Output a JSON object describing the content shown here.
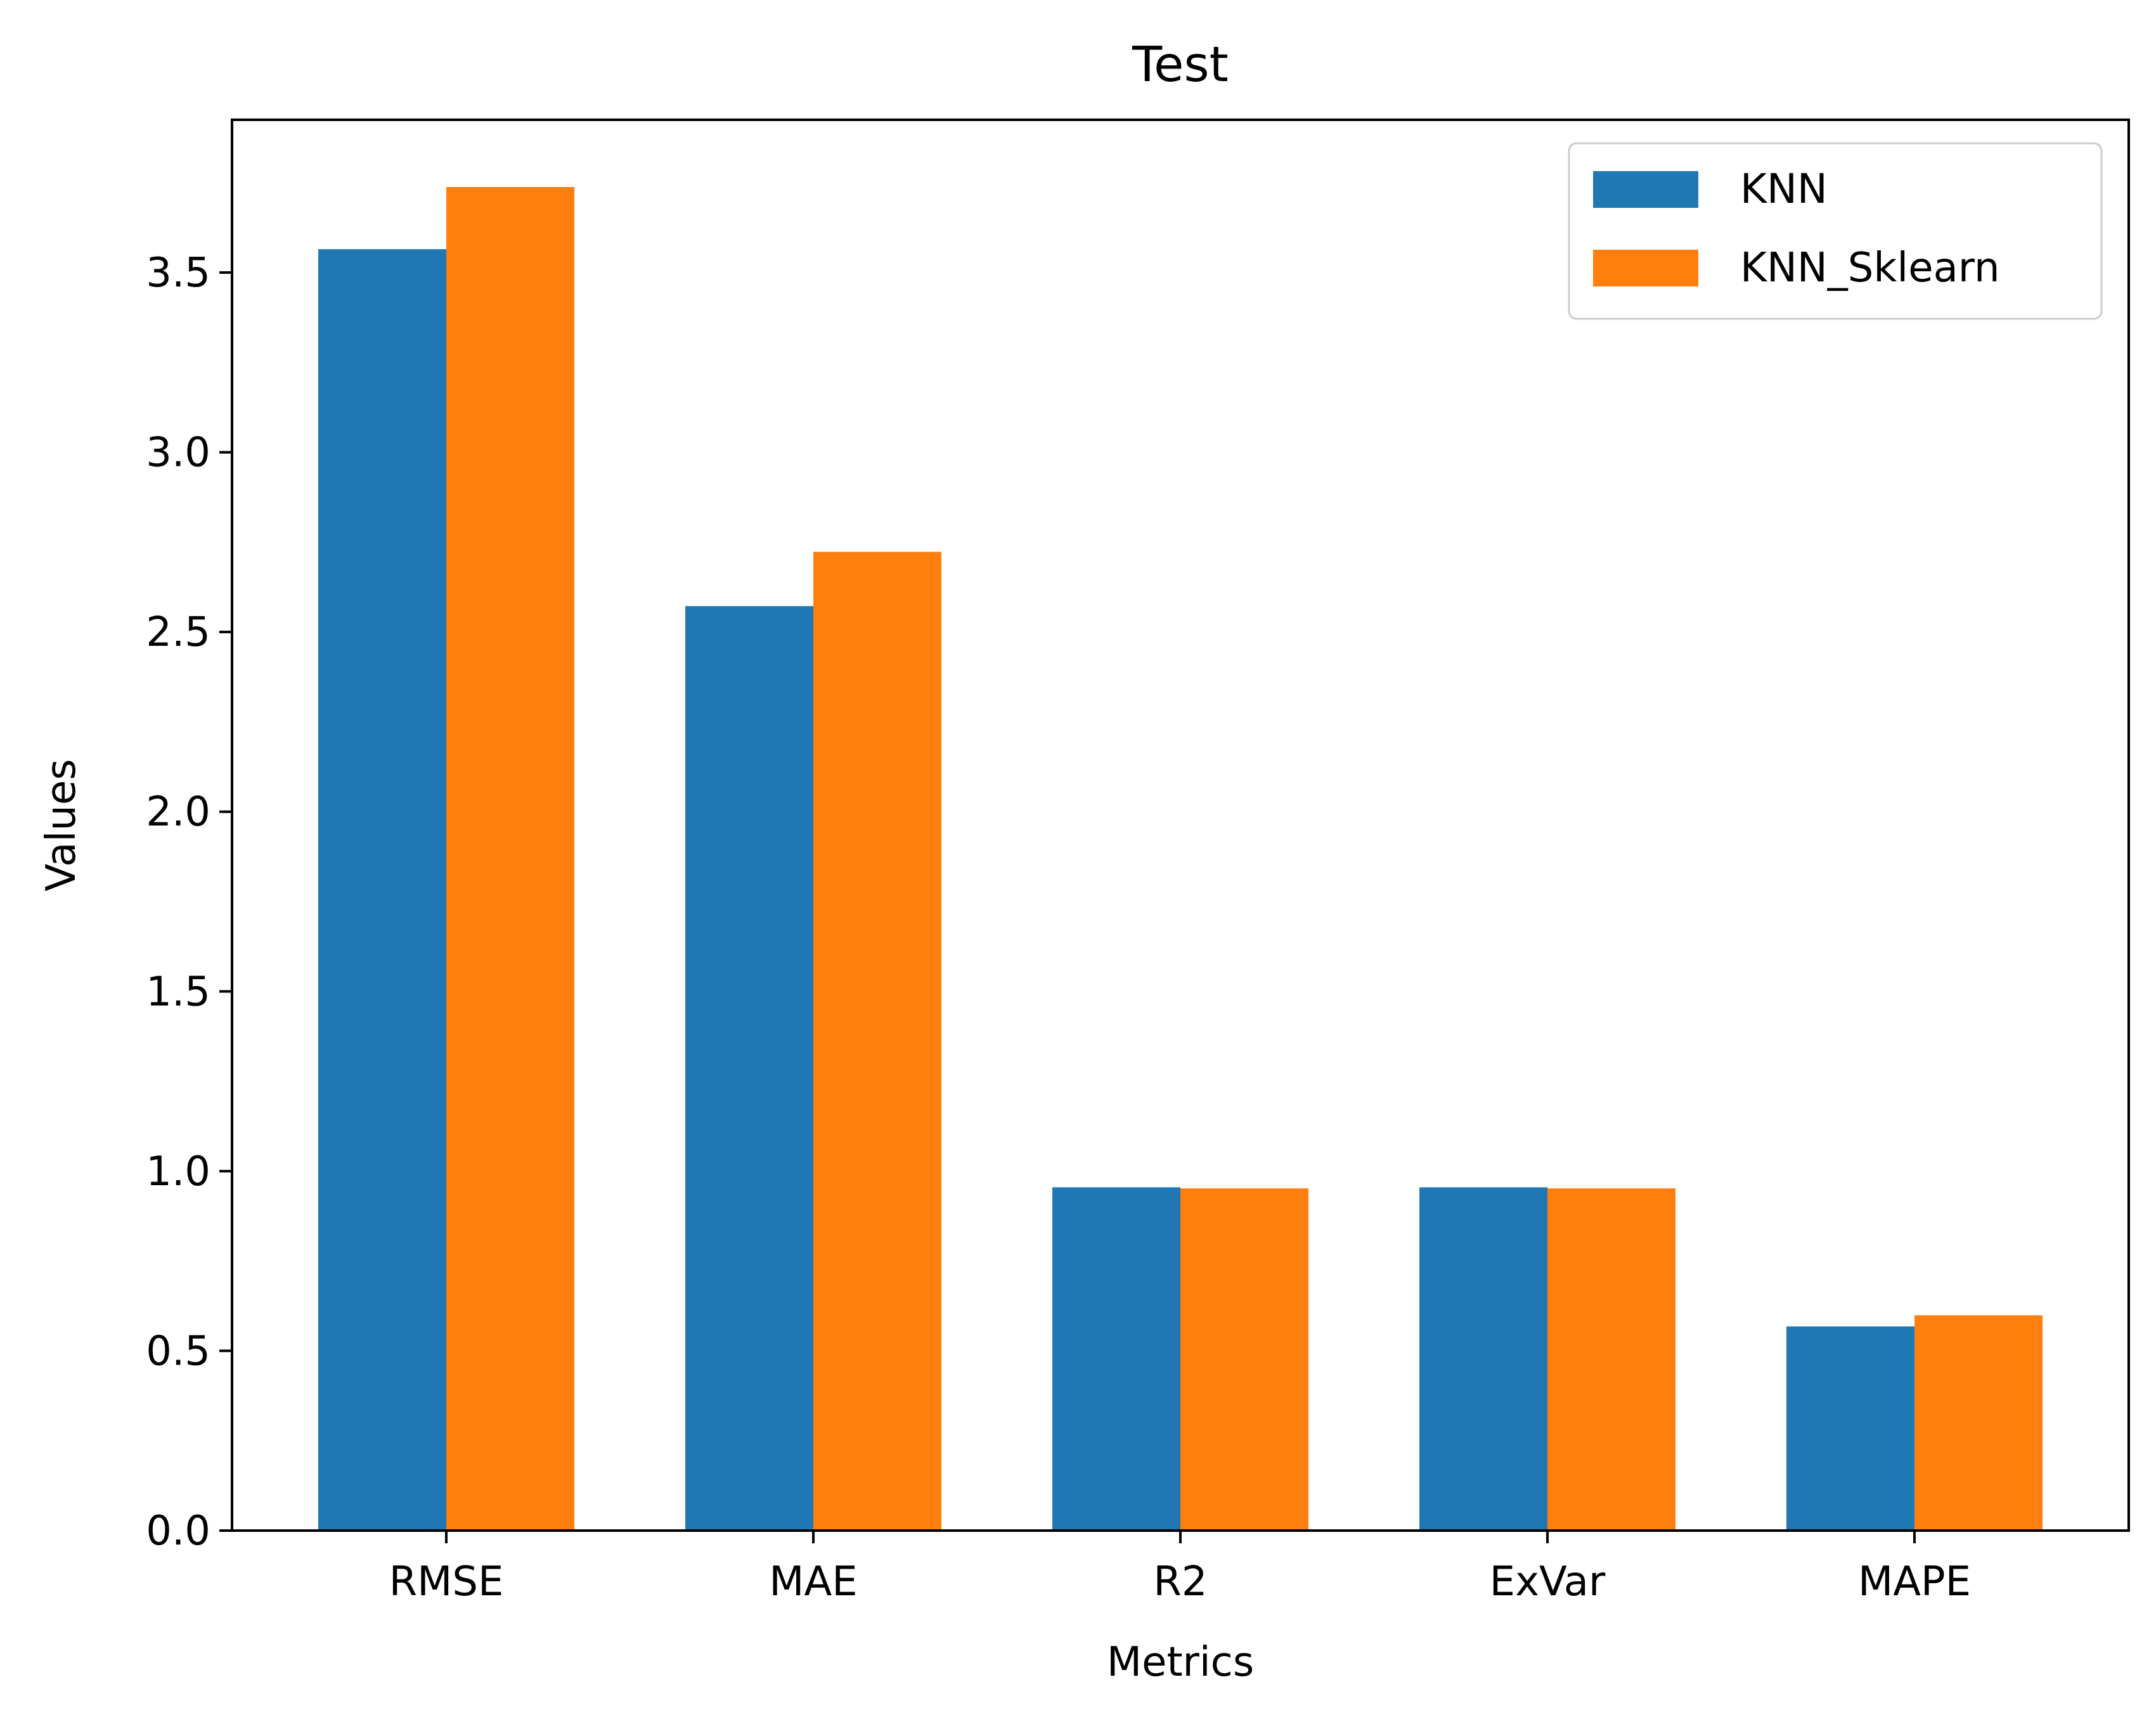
{
  "chart_data": {
    "type": "bar",
    "title": "Test",
    "xlabel": "Metrics",
    "ylabel": "Values",
    "categories": [
      "RMSE",
      "MAE",
      "R2",
      "ExVar",
      "MAPE"
    ],
    "series": [
      {
        "name": "KNN",
        "color": "#1f77b4",
        "values": [
          3.565,
          2.572,
          0.955,
          0.955,
          0.568
        ]
      },
      {
        "name": "KNN_Sklearn",
        "color": "#ff7f0e",
        "values": [
          3.738,
          2.723,
          0.952,
          0.952,
          0.599
        ]
      }
    ],
    "ylim": [
      0,
      3.925
    ],
    "yticks": [
      0.0,
      0.5,
      1.0,
      1.5,
      2.0,
      2.5,
      3.0,
      3.5
    ],
    "ytick_labels": [
      "0.0",
      "0.5",
      "1.0",
      "1.5",
      "2.0",
      "2.5",
      "3.0",
      "3.5"
    ],
    "grid": false,
    "legend": "top-right"
  }
}
